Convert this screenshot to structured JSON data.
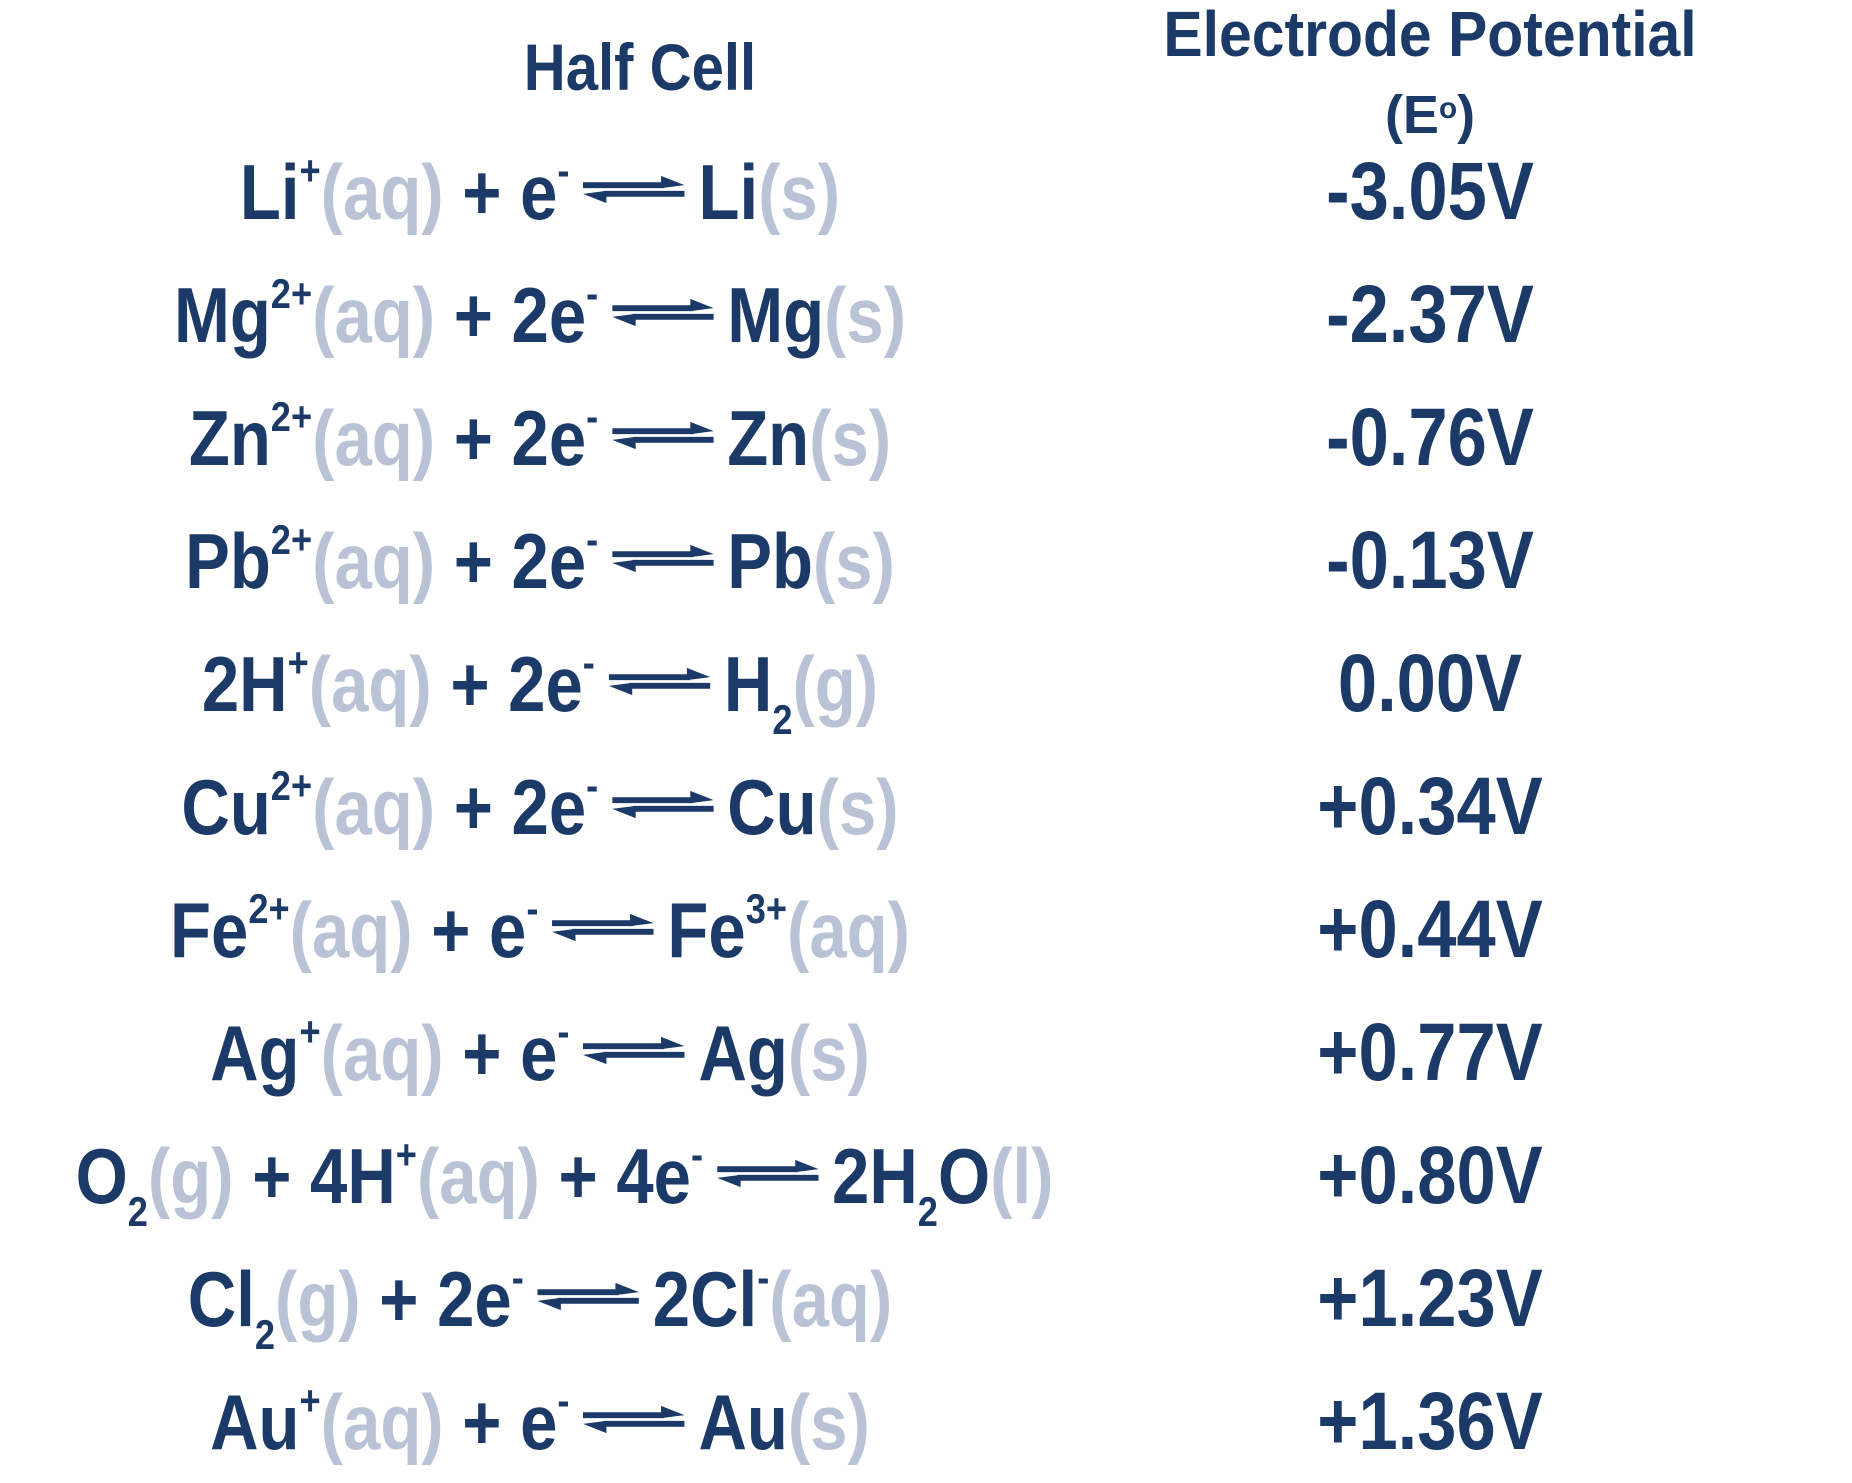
{
  "title_header": {
    "half_cell": "Half Cell",
    "electrode_potential": "Electrode Potential",
    "symbol_open": "(E",
    "symbol_sup": "o",
    "symbol_close": ")"
  },
  "colors": {
    "navy": "#1b3a68",
    "light_state": "#b9c3d5"
  },
  "icons": {
    "equilibrium_arrow": "equilibrium-arrow-icon"
  },
  "rows": [
    {
      "name": "lithium",
      "potential": "-3.05V",
      "tokens": [
        [
          "m",
          "Li"
        ],
        [
          "sup",
          "+"
        ],
        [
          "st",
          "(aq)"
        ],
        [
          "m",
          " + e"
        ],
        [
          "sup",
          "-"
        ],
        [
          "arr",
          ""
        ],
        [
          "m",
          "Li"
        ],
        [
          "st",
          "(s)"
        ]
      ]
    },
    {
      "name": "magnesium",
      "potential": "-2.37V",
      "tokens": [
        [
          "m",
          "Mg"
        ],
        [
          "sup",
          "2+"
        ],
        [
          "st",
          "(aq)"
        ],
        [
          "m",
          " + 2e"
        ],
        [
          "sup",
          "-"
        ],
        [
          "arr",
          ""
        ],
        [
          "m",
          "Mg"
        ],
        [
          "st",
          "(s)"
        ]
      ]
    },
    {
      "name": "zinc",
      "potential": "-0.76V",
      "tokens": [
        [
          "m",
          "Zn"
        ],
        [
          "sup",
          "2+"
        ],
        [
          "st",
          "(aq)"
        ],
        [
          "m",
          " + 2e"
        ],
        [
          "sup",
          "-"
        ],
        [
          "arr",
          ""
        ],
        [
          "m",
          "Zn"
        ],
        [
          "st",
          "(s)"
        ]
      ]
    },
    {
      "name": "lead",
      "potential": "-0.13V",
      "tokens": [
        [
          "m",
          "Pb"
        ],
        [
          "sup",
          "2+"
        ],
        [
          "st",
          "(aq)"
        ],
        [
          "m",
          " + 2e"
        ],
        [
          "sup",
          "-"
        ],
        [
          "arr",
          ""
        ],
        [
          "m",
          "Pb"
        ],
        [
          "st",
          "(s)"
        ]
      ]
    },
    {
      "name": "hydrogen",
      "potential": "0.00V",
      "tokens": [
        [
          "m",
          "2H"
        ],
        [
          "sup",
          "+"
        ],
        [
          "st",
          "(aq)"
        ],
        [
          "m",
          " + 2e"
        ],
        [
          "sup",
          "-"
        ],
        [
          "arr",
          ""
        ],
        [
          "m",
          "H"
        ],
        [
          "sub",
          "2"
        ],
        [
          "st",
          "(g)"
        ]
      ]
    },
    {
      "name": "copper",
      "potential": "+0.34V",
      "tokens": [
        [
          "m",
          "Cu"
        ],
        [
          "sup",
          "2+"
        ],
        [
          "st",
          "(aq)"
        ],
        [
          "m",
          " + 2e"
        ],
        [
          "sup",
          "-"
        ],
        [
          "arr",
          ""
        ],
        [
          "m",
          "Cu"
        ],
        [
          "st",
          "(s)"
        ]
      ]
    },
    {
      "name": "iron",
      "potential": "+0.44V",
      "tokens": [
        [
          "m",
          "Fe"
        ],
        [
          "sup",
          "2+"
        ],
        [
          "st",
          "(aq)"
        ],
        [
          "m",
          " + e"
        ],
        [
          "sup",
          "-"
        ],
        [
          "arr",
          ""
        ],
        [
          "m",
          "Fe"
        ],
        [
          "sup",
          "3+"
        ],
        [
          "st",
          "(aq)"
        ]
      ]
    },
    {
      "name": "silver",
      "potential": "+0.77V",
      "tokens": [
        [
          "m",
          "Ag"
        ],
        [
          "sup",
          "+"
        ],
        [
          "st",
          "(aq)"
        ],
        [
          "m",
          " + e"
        ],
        [
          "sup",
          "-"
        ],
        [
          "arr",
          ""
        ],
        [
          "m",
          "Ag"
        ],
        [
          "st",
          "(s)"
        ]
      ]
    },
    {
      "name": "oxygen",
      "potential": "+0.80V",
      "tokens": [
        [
          "m",
          "O"
        ],
        [
          "sub",
          "2"
        ],
        [
          "st",
          "(g)"
        ],
        [
          "m",
          " + 4H"
        ],
        [
          "sup",
          "+"
        ],
        [
          "st",
          "(aq)"
        ],
        [
          "m",
          " + 4e"
        ],
        [
          "sup",
          "-"
        ],
        [
          "arr",
          ""
        ],
        [
          "m",
          "2H"
        ],
        [
          "sub",
          "2"
        ],
        [
          "m",
          "O"
        ],
        [
          "st",
          "(l)"
        ]
      ]
    },
    {
      "name": "chlorine",
      "potential": "+1.23V",
      "tokens": [
        [
          "m",
          "Cl"
        ],
        [
          "sub",
          "2"
        ],
        [
          "st",
          "(g)"
        ],
        [
          "m",
          " + 2e"
        ],
        [
          "sup",
          "-"
        ],
        [
          "arr",
          ""
        ],
        [
          "m",
          "2Cl"
        ],
        [
          "sup",
          "-"
        ],
        [
          "st",
          "(aq)"
        ]
      ]
    },
    {
      "name": "gold",
      "potential": "+1.36V",
      "tokens": [
        [
          "m",
          "Au"
        ],
        [
          "sup",
          "+"
        ],
        [
          "st",
          "(aq)"
        ],
        [
          "m",
          " + e"
        ],
        [
          "sup",
          "-"
        ],
        [
          "arr",
          ""
        ],
        [
          "m",
          "Au"
        ],
        [
          "st",
          "(s)"
        ]
      ]
    }
  ],
  "chart_data": {
    "type": "table",
    "title": "Half Cell vs Electrode Potential (E°)",
    "columns": [
      "Half Cell",
      "Electrode Potential (E°)"
    ],
    "rows_text": [
      [
        "Li+(aq) + e- ⇌ Li(s)",
        "-3.05V"
      ],
      [
        "Mg2+(aq) + 2e- ⇌ Mg(s)",
        "-2.37V"
      ],
      [
        "Zn2+(aq) + 2e- ⇌ Zn(s)",
        "-0.76V"
      ],
      [
        "Pb2+(aq) + 2e- ⇌ Pb(s)",
        "-0.13V"
      ],
      [
        "2H+(aq) + 2e- ⇌ H2(g)",
        "0.00V"
      ],
      [
        "Cu2+(aq) + 2e- ⇌ Cu(s)",
        "+0.34V"
      ],
      [
        "Fe2+(aq) + e- ⇌ Fe3+(aq)",
        "+0.44V"
      ],
      [
        "Ag+(aq) + e- ⇌ Ag(s)",
        "+0.77V"
      ],
      [
        "O2(g) + 4H+(aq) + 4e- ⇌ 2H2O(l)",
        "+0.80V"
      ],
      [
        "Cl2(g) + 2e- ⇌ 2Cl-(aq)",
        "+1.23V"
      ],
      [
        "Au+(aq) + e- ⇌ Au(s)",
        "+1.36V"
      ]
    ],
    "values_volts": [
      -3.05,
      -2.37,
      -0.76,
      -0.13,
      0.0,
      0.34,
      0.44,
      0.77,
      0.8,
      1.23,
      1.36
    ]
  }
}
